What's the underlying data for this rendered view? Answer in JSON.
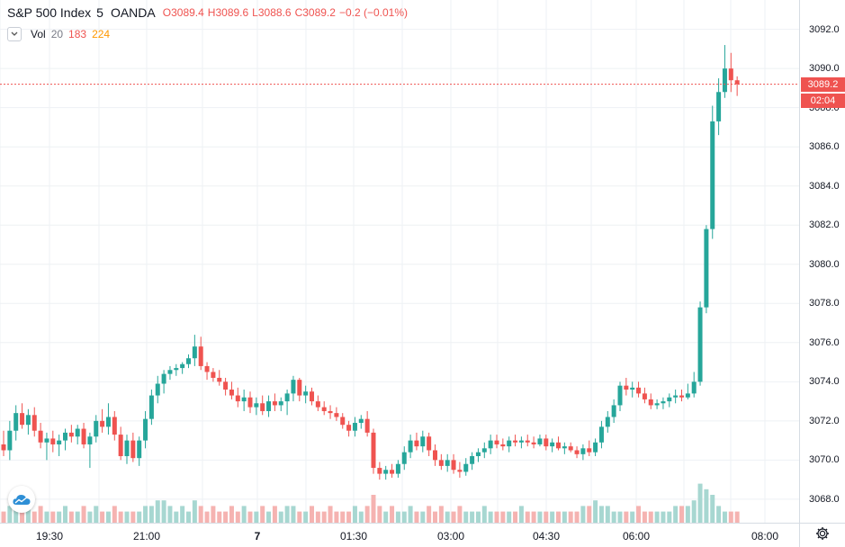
{
  "legend": {
    "symbol": "S&P 500 Index",
    "timeframe": "5",
    "source": "OANDA",
    "open_label": "O",
    "open": "3089.4",
    "high_label": "H",
    "high": "3089.6",
    "low_label": "L",
    "low": "3088.6",
    "close_label": "C",
    "close": "3089.2",
    "change": "−0.2 (−0.01%)"
  },
  "volume_legend": {
    "label": "Vol",
    "ma_period": "20",
    "value1": "183",
    "value2": "224"
  },
  "price_axis": {
    "ticks": [
      "3068.0",
      "3070.0",
      "3072.0",
      "3074.0",
      "3076.0",
      "3078.0",
      "3080.0",
      "3082.0",
      "3084.0",
      "3086.0",
      "3088.0",
      "3090.0",
      "3092.0"
    ],
    "last_price": "3089.2",
    "countdown": "02:04"
  },
  "time_axis": {
    "ticks": [
      "19:30",
      "21:00",
      "7",
      "01:30",
      "03:00",
      "04:30",
      "06:00",
      "08:00"
    ]
  },
  "colors": {
    "up": "#26a69a",
    "down": "#ef5350",
    "vol_up": "#a7d7d1",
    "vol_down": "#f5b3b1",
    "grid": "#eef1f4"
  },
  "icons": {
    "logo": "tradingview-cloud-icon",
    "settings": "gear-icon",
    "collapse": "chevron-down-icon"
  },
  "chart_data": {
    "type": "candlestick",
    "ylim": [
      3066.8,
      3093.5
    ],
    "series": [
      {
        "o": 3070.8,
        "h": 3071.5,
        "l": 3070.2,
        "c": 3070.5
      },
      {
        "o": 3070.5,
        "h": 3072.0,
        "l": 3070.0,
        "c": 3071.5
      },
      {
        "o": 3071.5,
        "h": 3072.8,
        "l": 3071.0,
        "c": 3072.4
      },
      {
        "o": 3072.4,
        "h": 3072.9,
        "l": 3071.6,
        "c": 3071.8
      },
      {
        "o": 3071.8,
        "h": 3072.6,
        "l": 3071.3,
        "c": 3072.3
      },
      {
        "o": 3072.3,
        "h": 3072.7,
        "l": 3071.2,
        "c": 3071.5
      },
      {
        "o": 3071.5,
        "h": 3071.9,
        "l": 3070.6,
        "c": 3070.9
      },
      {
        "o": 3070.9,
        "h": 3071.4,
        "l": 3070.0,
        "c": 3071.1
      },
      {
        "o": 3071.1,
        "h": 3071.5,
        "l": 3070.4,
        "c": 3070.8
      },
      {
        "o": 3070.8,
        "h": 3071.3,
        "l": 3070.2,
        "c": 3071.0
      },
      {
        "o": 3071.0,
        "h": 3071.6,
        "l": 3070.5,
        "c": 3071.4
      },
      {
        "o": 3071.4,
        "h": 3071.8,
        "l": 3070.9,
        "c": 3071.2
      },
      {
        "o": 3071.2,
        "h": 3071.8,
        "l": 3070.8,
        "c": 3071.6
      },
      {
        "o": 3071.6,
        "h": 3071.9,
        "l": 3070.6,
        "c": 3070.8
      },
      {
        "o": 3070.8,
        "h": 3071.4,
        "l": 3069.6,
        "c": 3071.2
      },
      {
        "o": 3071.2,
        "h": 3072.3,
        "l": 3070.9,
        "c": 3072.0
      },
      {
        "o": 3072.0,
        "h": 3072.6,
        "l": 3071.4,
        "c": 3071.7
      },
      {
        "o": 3071.7,
        "h": 3072.9,
        "l": 3071.3,
        "c": 3072.2
      },
      {
        "o": 3072.2,
        "h": 3072.5,
        "l": 3071.0,
        "c": 3071.3
      },
      {
        "o": 3071.3,
        "h": 3071.7,
        "l": 3070.0,
        "c": 3070.2
      },
      {
        "o": 3070.2,
        "h": 3071.3,
        "l": 3069.8,
        "c": 3071.0
      },
      {
        "o": 3071.0,
        "h": 3071.4,
        "l": 3069.9,
        "c": 3070.1
      },
      {
        "o": 3070.1,
        "h": 3071.2,
        "l": 3069.7,
        "c": 3071.0
      },
      {
        "o": 3071.0,
        "h": 3072.5,
        "l": 3070.6,
        "c": 3072.1
      },
      {
        "o": 3072.1,
        "h": 3073.6,
        "l": 3071.8,
        "c": 3073.3
      },
      {
        "o": 3073.3,
        "h": 3074.3,
        "l": 3072.9,
        "c": 3073.9
      },
      {
        "o": 3073.9,
        "h": 3074.6,
        "l": 3073.4,
        "c": 3074.4
      },
      {
        "o": 3074.4,
        "h": 3074.8,
        "l": 3074.1,
        "c": 3074.6
      },
      {
        "o": 3074.6,
        "h": 3074.9,
        "l": 3074.3,
        "c": 3074.7
      },
      {
        "o": 3074.7,
        "h": 3075.0,
        "l": 3074.4,
        "c": 3074.9
      },
      {
        "o": 3074.9,
        "h": 3075.4,
        "l": 3074.7,
        "c": 3075.2
      },
      {
        "o": 3075.2,
        "h": 3076.4,
        "l": 3074.8,
        "c": 3075.8
      },
      {
        "o": 3075.8,
        "h": 3076.3,
        "l": 3074.6,
        "c": 3074.8
      },
      {
        "o": 3074.8,
        "h": 3075.0,
        "l": 3074.1,
        "c": 3074.5
      },
      {
        "o": 3074.5,
        "h": 3074.7,
        "l": 3074.0,
        "c": 3074.2
      },
      {
        "o": 3074.2,
        "h": 3074.6,
        "l": 3073.8,
        "c": 3074.0
      },
      {
        "o": 3074.0,
        "h": 3074.2,
        "l": 3073.3,
        "c": 3073.6
      },
      {
        "o": 3073.6,
        "h": 3074.0,
        "l": 3073.1,
        "c": 3073.3
      },
      {
        "o": 3073.3,
        "h": 3073.7,
        "l": 3072.7,
        "c": 3073.0
      },
      {
        "o": 3073.0,
        "h": 3073.6,
        "l": 3072.5,
        "c": 3073.2
      },
      {
        "o": 3073.2,
        "h": 3073.5,
        "l": 3072.4,
        "c": 3072.7
      },
      {
        "o": 3072.7,
        "h": 3073.2,
        "l": 3072.3,
        "c": 3072.9
      },
      {
        "o": 3072.9,
        "h": 3073.3,
        "l": 3072.3,
        "c": 3072.5
      },
      {
        "o": 3072.5,
        "h": 3073.3,
        "l": 3072.2,
        "c": 3073.0
      },
      {
        "o": 3073.0,
        "h": 3073.4,
        "l": 3072.5,
        "c": 3072.8
      },
      {
        "o": 3072.8,
        "h": 3073.2,
        "l": 3072.5,
        "c": 3073.0
      },
      {
        "o": 3073.0,
        "h": 3073.6,
        "l": 3072.3,
        "c": 3073.4
      },
      {
        "o": 3073.4,
        "h": 3074.3,
        "l": 3073.0,
        "c": 3074.1
      },
      {
        "o": 3074.1,
        "h": 3074.2,
        "l": 3073.0,
        "c": 3073.3
      },
      {
        "o": 3073.3,
        "h": 3073.8,
        "l": 3072.9,
        "c": 3073.5
      },
      {
        "o": 3073.5,
        "h": 3073.7,
        "l": 3072.8,
        "c": 3073.0
      },
      {
        "o": 3073.0,
        "h": 3073.3,
        "l": 3072.5,
        "c": 3072.7
      },
      {
        "o": 3072.7,
        "h": 3073.0,
        "l": 3072.3,
        "c": 3072.5
      },
      {
        "o": 3072.5,
        "h": 3072.8,
        "l": 3072.1,
        "c": 3072.4
      },
      {
        "o": 3072.4,
        "h": 3072.7,
        "l": 3072.0,
        "c": 3072.2
      },
      {
        "o": 3072.2,
        "h": 3072.4,
        "l": 3071.6,
        "c": 3071.8
      },
      {
        "o": 3071.8,
        "h": 3072.0,
        "l": 3071.2,
        "c": 3071.5
      },
      {
        "o": 3071.5,
        "h": 3072.2,
        "l": 3071.2,
        "c": 3071.9
      },
      {
        "o": 3071.9,
        "h": 3072.3,
        "l": 3071.6,
        "c": 3072.1
      },
      {
        "o": 3072.1,
        "h": 3072.5,
        "l": 3071.2,
        "c": 3071.4
      },
      {
        "o": 3071.4,
        "h": 3071.6,
        "l": 3069.3,
        "c": 3069.6
      },
      {
        "o": 3069.6,
        "h": 3069.9,
        "l": 3069.0,
        "c": 3069.3
      },
      {
        "o": 3069.3,
        "h": 3069.7,
        "l": 3069.0,
        "c": 3069.5
      },
      {
        "o": 3069.5,
        "h": 3069.8,
        "l": 3069.1,
        "c": 3069.3
      },
      {
        "o": 3069.3,
        "h": 3070.0,
        "l": 3069.1,
        "c": 3069.8
      },
      {
        "o": 3069.8,
        "h": 3070.7,
        "l": 3069.5,
        "c": 3070.4
      },
      {
        "o": 3070.4,
        "h": 3071.3,
        "l": 3070.1,
        "c": 3071.0
      },
      {
        "o": 3071.0,
        "h": 3071.4,
        "l": 3070.5,
        "c": 3070.7
      },
      {
        "o": 3070.7,
        "h": 3071.5,
        "l": 3070.4,
        "c": 3071.2
      },
      {
        "o": 3071.2,
        "h": 3071.4,
        "l": 3070.2,
        "c": 3070.5
      },
      {
        "o": 3070.5,
        "h": 3070.8,
        "l": 3069.7,
        "c": 3070.0
      },
      {
        "o": 3070.0,
        "h": 3070.3,
        "l": 3069.5,
        "c": 3069.7
      },
      {
        "o": 3069.7,
        "h": 3070.3,
        "l": 3069.4,
        "c": 3070.0
      },
      {
        "o": 3070.0,
        "h": 3070.3,
        "l": 3069.3,
        "c": 3069.5
      },
      {
        "o": 3069.5,
        "h": 3069.9,
        "l": 3069.1,
        "c": 3069.4
      },
      {
        "o": 3069.4,
        "h": 3070.1,
        "l": 3069.2,
        "c": 3069.8
      },
      {
        "o": 3069.8,
        "h": 3070.4,
        "l": 3069.5,
        "c": 3070.2
      },
      {
        "o": 3070.2,
        "h": 3070.6,
        "l": 3069.9,
        "c": 3070.4
      },
      {
        "o": 3070.4,
        "h": 3070.9,
        "l": 3070.1,
        "c": 3070.6
      },
      {
        "o": 3070.6,
        "h": 3071.3,
        "l": 3070.3,
        "c": 3071.0
      },
      {
        "o": 3071.0,
        "h": 3071.3,
        "l": 3070.6,
        "c": 3070.8
      },
      {
        "o": 3070.8,
        "h": 3071.1,
        "l": 3070.5,
        "c": 3070.7
      },
      {
        "o": 3070.7,
        "h": 3071.2,
        "l": 3070.4,
        "c": 3071.0
      },
      {
        "o": 3071.0,
        "h": 3071.3,
        "l": 3070.7,
        "c": 3070.9
      },
      {
        "o": 3070.9,
        "h": 3071.2,
        "l": 3070.6,
        "c": 3071.0
      },
      {
        "o": 3071.0,
        "h": 3071.3,
        "l": 3070.7,
        "c": 3070.9
      },
      {
        "o": 3070.9,
        "h": 3071.2,
        "l": 3070.6,
        "c": 3070.8
      },
      {
        "o": 3070.8,
        "h": 3071.3,
        "l": 3070.7,
        "c": 3071.1
      },
      {
        "o": 3071.1,
        "h": 3071.3,
        "l": 3070.5,
        "c": 3070.7
      },
      {
        "o": 3070.7,
        "h": 3071.1,
        "l": 3070.4,
        "c": 3070.9
      },
      {
        "o": 3070.9,
        "h": 3071.2,
        "l": 3070.5,
        "c": 3070.6
      },
      {
        "o": 3070.6,
        "h": 3070.9,
        "l": 3070.3,
        "c": 3070.7
      },
      {
        "o": 3070.7,
        "h": 3070.9,
        "l": 3070.4,
        "c": 3070.5
      },
      {
        "o": 3070.5,
        "h": 3070.7,
        "l": 3070.1,
        "c": 3070.3
      },
      {
        "o": 3070.3,
        "h": 3070.8,
        "l": 3070.0,
        "c": 3070.6
      },
      {
        "o": 3070.6,
        "h": 3071.0,
        "l": 3070.2,
        "c": 3070.4
      },
      {
        "o": 3070.4,
        "h": 3071.1,
        "l": 3070.2,
        "c": 3070.9
      },
      {
        "o": 3070.9,
        "h": 3072.0,
        "l": 3070.6,
        "c": 3071.7
      },
      {
        "o": 3071.7,
        "h": 3072.5,
        "l": 3071.4,
        "c": 3072.2
      },
      {
        "o": 3072.2,
        "h": 3073.1,
        "l": 3071.9,
        "c": 3072.8
      },
      {
        "o": 3072.8,
        "h": 3074.0,
        "l": 3072.5,
        "c": 3073.8
      },
      {
        "o": 3073.8,
        "h": 3074.2,
        "l": 3073.3,
        "c": 3073.6
      },
      {
        "o": 3073.6,
        "h": 3074.0,
        "l": 3073.2,
        "c": 3073.7
      },
      {
        "o": 3073.7,
        "h": 3074.0,
        "l": 3073.2,
        "c": 3073.4
      },
      {
        "o": 3073.4,
        "h": 3073.7,
        "l": 3072.9,
        "c": 3073.1
      },
      {
        "o": 3073.1,
        "h": 3073.4,
        "l": 3072.6,
        "c": 3072.8
      },
      {
        "o": 3072.8,
        "h": 3073.1,
        "l": 3072.6,
        "c": 3072.9
      },
      {
        "o": 3072.9,
        "h": 3073.2,
        "l": 3072.6,
        "c": 3073.0
      },
      {
        "o": 3073.0,
        "h": 3073.4,
        "l": 3072.7,
        "c": 3073.2
      },
      {
        "o": 3073.2,
        "h": 3073.6,
        "l": 3072.9,
        "c": 3073.3
      },
      {
        "o": 3073.3,
        "h": 3073.6,
        "l": 3073.0,
        "c": 3073.2
      },
      {
        "o": 3073.2,
        "h": 3073.9,
        "l": 3073.1,
        "c": 3073.4
      },
      {
        "o": 3073.4,
        "h": 3074.5,
        "l": 3073.2,
        "c": 3074.0
      },
      {
        "o": 3074.0,
        "h": 3078.1,
        "l": 3073.8,
        "c": 3077.8
      },
      {
        "o": 3077.8,
        "h": 3082.0,
        "l": 3077.5,
        "c": 3081.8
      },
      {
        "o": 3081.8,
        "h": 3088.1,
        "l": 3081.3,
        "c": 3087.3
      },
      {
        "o": 3087.3,
        "h": 3089.5,
        "l": 3086.6,
        "c": 3088.8
      },
      {
        "o": 3088.8,
        "h": 3091.2,
        "l": 3088.5,
        "c": 3090.0
      },
      {
        "o": 3090.0,
        "h": 3090.8,
        "l": 3088.8,
        "c": 3089.4
      },
      {
        "o": 3089.4,
        "h": 3089.6,
        "l": 3088.6,
        "c": 3089.2
      }
    ],
    "volume_scale": 10,
    "volumes": [
      2,
      3,
      3,
      2,
      3,
      2,
      3,
      2,
      2,
      2,
      3,
      2,
      2,
      3,
      2,
      3,
      2,
      2,
      3,
      2,
      2,
      2,
      2,
      3,
      3,
      4,
      4,
      3,
      2,
      3,
      2,
      4,
      3,
      2,
      3,
      2,
      2,
      3,
      2,
      3,
      2,
      2,
      3,
      2,
      3,
      2,
      3,
      3,
      2,
      2,
      3,
      2,
      2,
      3,
      2,
      2,
      2,
      3,
      2,
      3,
      5,
      3,
      2,
      3,
      2,
      2,
      3,
      2,
      2,
      3,
      2,
      3,
      2,
      2,
      3,
      2,
      2,
      2,
      3,
      2,
      2,
      2,
      2,
      2,
      3,
      2,
      2,
      2,
      2,
      2,
      2,
      2,
      2,
      2,
      3,
      3,
      4,
      3,
      3,
      2,
      2,
      2,
      2,
      3,
      2,
      2,
      2,
      2,
      2,
      3,
      3,
      3,
      4,
      7,
      6,
      5,
      3,
      2
    ],
    "last_price": 3089.2,
    "volume_ma": 224
  }
}
